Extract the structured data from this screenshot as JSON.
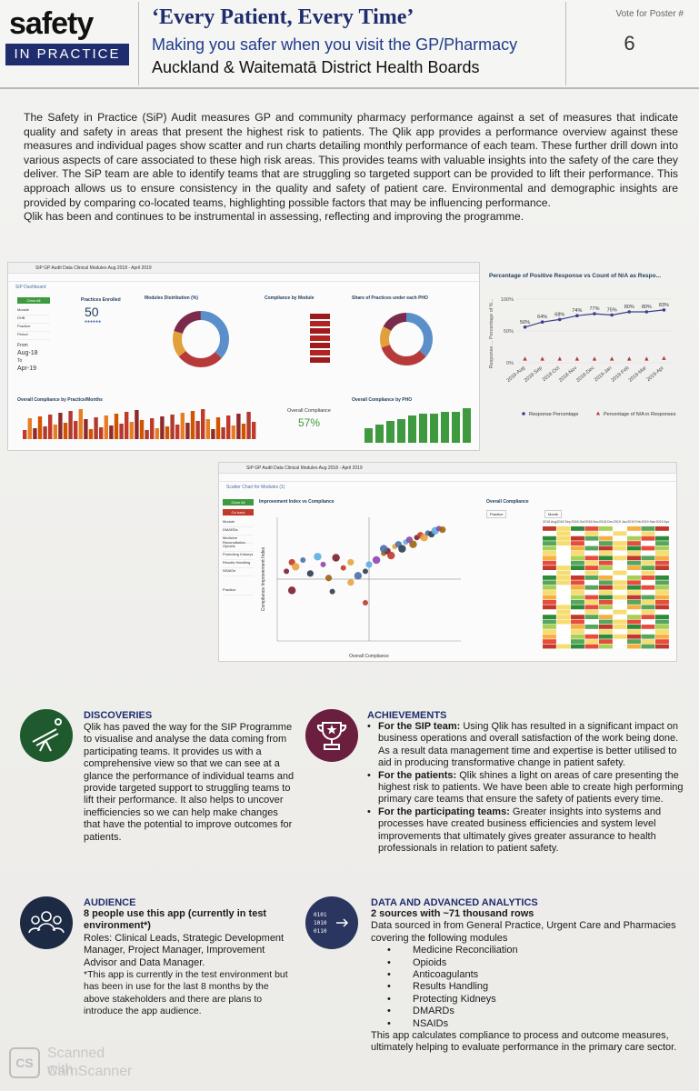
{
  "header": {
    "logo_top": "safety",
    "logo_bottom": "IN PRACTICE",
    "title": "‘Every Patient, Every Time’",
    "subtitle": "Making you safer when you visit the GP/Pharmacy",
    "board": "Auckland & Waitematā District Health Boards",
    "vote_label": "Vote for Poster #",
    "vote_number": "6"
  },
  "intro": {
    "paragraph": "The Safety in Practice (SiP) Audit measures GP and community pharmacy performance against a set of measures that indicate quality and safety in areas that present the highest risk to patients. The Qlik app provides a performance overview against these measures and individual pages show scatter and run charts detailing monthly performance of each team. These further drill down into various aspects of care associated to these high risk areas. This provides teams with valuable insights into the safety of the care they deliver. The SiP team are able to identify teams that are struggling so targeted support can be provided to lift their performance. This approach allows us to ensure consistency in the quality and safety of patient care. Environmental and demographic insights are provided by comparing co-located teams, highlighting possible factors that may be influencing performance.",
    "closing": "Qlik has been and continues to be instrumental in assessing, reflecting and improving the programme."
  },
  "dashboard1": {
    "app_title": "SiP GP Audit Data Clinical Modules Aug 2018 - April 2019",
    "sheet_title": "SiP Dashboard",
    "filters": [
      "Clear All",
      "Module",
      "DHB",
      "Practice",
      "Period"
    ],
    "from_label": "From",
    "from_value": "Aug-18",
    "to_label": "To",
    "to_value": "Apr-19",
    "practices_enrolled_label": "Practices Enrolled",
    "practices_enrolled_value": "50",
    "modules_distribution_label": "Modules Distribution (%)",
    "compliance_by_module_label": "Compliance by Module",
    "share_by_pho_label": "Share of Practices under each PHO",
    "overall_compliance_practice_label": "Overall Compliance by Practice/Months",
    "overall_compliance_label": "Overall Compliance",
    "overall_compliance_value": "57%",
    "overall_compliance_pho_label": "Overall Compliance by PHO"
  },
  "chart_data": [
    {
      "type": "line",
      "title": "Percentage of Positive Response vs Count of N/A as Respo...",
      "ylabel": "Response ... Percentage of N...",
      "x": [
        "2018-Aug",
        "2018-Sep",
        "2018-Oct",
        "2018-Nov",
        "2018-Dec",
        "2019-Jan",
        "2019-Feb",
        "2019-Mar",
        "2019-Apr"
      ],
      "y_ticks": [
        "0%",
        "50%",
        "100%"
      ],
      "ylim": [
        0,
        100
      ],
      "series": [
        {
          "name": "Response Percentage",
          "values": [
            56,
            64,
            68,
            74,
            77,
            75,
            80,
            80,
            83
          ],
          "color": "#3a3f8f"
        },
        {
          "name": "Percentage of N/A in Responses",
          "values": [
            6,
            6,
            6,
            6,
            6,
            6,
            6,
            6,
            7
          ],
          "color": "#b03a3a"
        }
      ],
      "data_labels": [
        "56%",
        "64%",
        "68%",
        "74%",
        "77%",
        "75%",
        "80%",
        "80%",
        "83%"
      ],
      "legend": "bottom"
    },
    {
      "type": "scatter",
      "title": "Improvement Index vs Compliance",
      "xlabel": "Overall Compliance",
      "ylabel": "Compliance Improvement Index",
      "xlim": [
        0,
        100
      ],
      "ylim": [
        0,
        110
      ],
      "points": [
        [
          5,
          62
        ],
        [
          8,
          70
        ],
        [
          10,
          66
        ],
        [
          14,
          72
        ],
        [
          18,
          60
        ],
        [
          22,
          75
        ],
        [
          25,
          68
        ],
        [
          28,
          56
        ],
        [
          32,
          74
        ],
        [
          36,
          65
        ],
        [
          40,
          70
        ],
        [
          44,
          58
        ],
        [
          48,
          62
        ],
        [
          50,
          68
        ],
        [
          54,
          72
        ],
        [
          58,
          78
        ],
        [
          60,
          80
        ],
        [
          62,
          76
        ],
        [
          64,
          84
        ],
        [
          66,
          86
        ],
        [
          68,
          82
        ],
        [
          70,
          88
        ],
        [
          72,
          90
        ],
        [
          74,
          86
        ],
        [
          76,
          92
        ],
        [
          78,
          94
        ],
        [
          80,
          92
        ],
        [
          82,
          96
        ],
        [
          84,
          95
        ],
        [
          86,
          98
        ],
        [
          88,
          100
        ],
        [
          90,
          99
        ],
        [
          8,
          45
        ],
        [
          48,
          34
        ],
        [
          40,
          52
        ],
        [
          58,
          82
        ],
        [
          30,
          44
        ]
      ]
    },
    {
      "type": "heatmap",
      "title": "Overall Compliance",
      "columns": [
        "2018 Aug",
        "2018 Sep",
        "2018 Oct",
        "2018 Nov",
        "2018 Dec",
        "2019 Jan",
        "2019 Feb",
        "2019 Mar",
        "2019 Apr"
      ]
    }
  ],
  "dashboard2": {
    "app_title": "SiP GP Audit Data Clinical Modules Aug 2018 - April 2019",
    "sheet_title": "Scatter Chart for Modules (1)",
    "filters": [
      "Clear All",
      "Go back",
      "Module",
      "DMARDs",
      "Medicine Reconciliation",
      "Opioids",
      "Protecting Kidneys",
      "Results Handling",
      "NSAIDs",
      "Practice"
    ],
    "expected_compliance_label": "Expected Compliance (99%)",
    "expected_compliance_side": "Expected Compliance (99%)",
    "heatmap_label": "Practice",
    "heatmap_filter": "Month"
  },
  "discoveries": {
    "title": "DISCOVERIES",
    "body": "Qlik has paved the way for the SIP Programme to visualise and analyse the data coming from participating teams. It provides us with a comprehensive view so that we can see at a glance the performance of individual teams and provide targeted support to struggling teams to lift their performance. It also helps to uncover inefficiencies so we can help make changes that have the potential to improve outcomes for patients."
  },
  "achievements": {
    "title": "ACHIEVEMENTS",
    "items": [
      {
        "lead": "For the SIP team:",
        "text": " Using Qlik has resulted in a significant impact on business operations and overall satisfaction of the work being done. As a result data management time and expertise is better utilised to aid in producing transformative change in patient safety."
      },
      {
        "lead": "For the patients:",
        "text": " Qlik shines a light on areas of care presenting the highest risk to patients. We have been able to create high performing primary care teams that ensure the safety of patients every time."
      },
      {
        "lead": "For the participating teams:",
        "text": " Greater insights into systems and processes have created business efficiencies and system level improvements that ultimately gives greater assurance to health professionals in relation to patient safety."
      }
    ]
  },
  "audience": {
    "title": "AUDIENCE",
    "subtitle": "8 people use this app (currently in test environment*)",
    "roles": "Roles: Clinical Leads, Strategic Development Manager, Project Manager, Improvement Advisor and Data Manager.",
    "note": "*This app is currently in the test environment but has been in use for the last 8 months by the above stakeholders and there are plans to introduce the app audience."
  },
  "analytics": {
    "title": "DATA AND ADVANCED ANALYTICS",
    "subtitle": "2 sources with ~71 thousand rows",
    "intro": "Data sourced in from General Practice, Urgent Care and Pharmacies covering the following modules",
    "modules": [
      "Medicine Reconciliation",
      "Opioids",
      "Anticoagulants",
      "Results Handling",
      "Protecting Kidneys",
      "DMARDs",
      "NSAIDs"
    ],
    "closing": "This app calculates compliance to process and outcome measures, ultimately helping to evaluate performance in the primary care sector."
  },
  "watermark": {
    "line1": "Scanned with",
    "line2": "CamScanner"
  },
  "colors": {
    "navy": "#1f2d6e",
    "discoveries_icon": "#1f5a2e",
    "achievements_icon": "#6b1f3f",
    "audience_icon": "#1c2a44",
    "analytics_icon": "#2a3560"
  }
}
